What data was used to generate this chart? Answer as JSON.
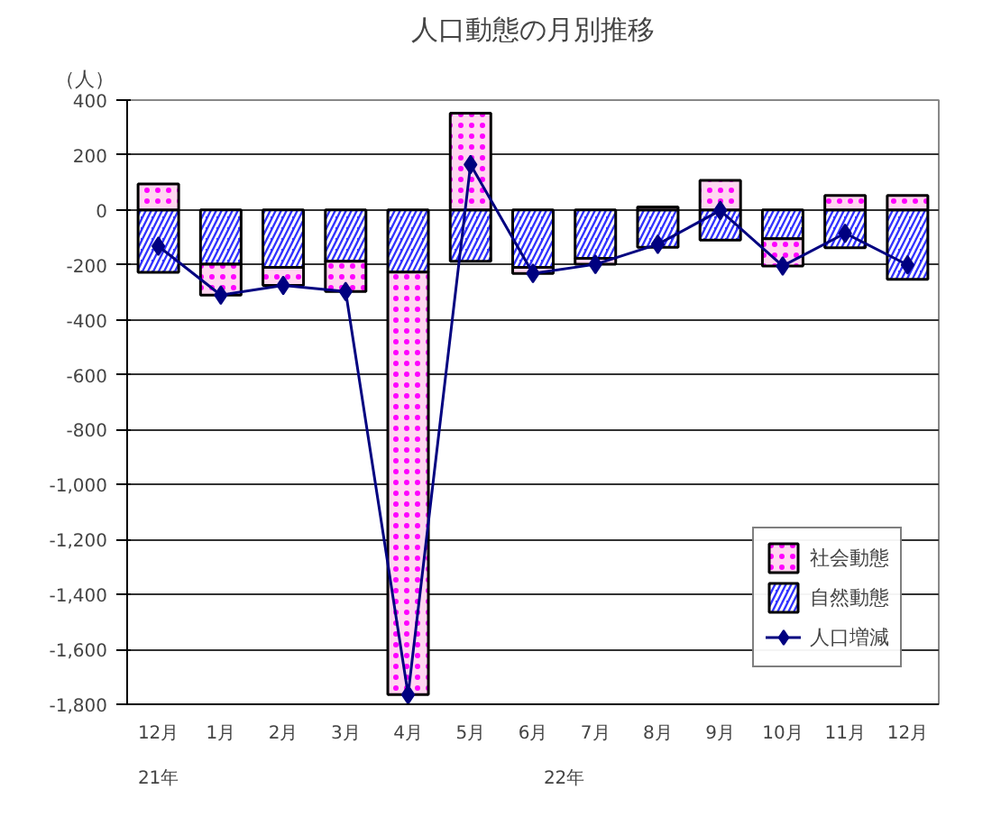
{
  "chart_data": {
    "type": "bar",
    "title": "人口動態の月別推移",
    "ylabel": "（人）",
    "categories": [
      "12月",
      "1月",
      "2月",
      "3月",
      "4月",
      "5月",
      "6月",
      "7月",
      "8月",
      "9月",
      "10月",
      "11月",
      "12月"
    ],
    "annotations": [
      "21年",
      "22年"
    ],
    "stacked": true,
    "series": [
      {
        "name": "自然動態",
        "color": "#3333ff",
        "values": [
          -227,
          -198,
          -209,
          -187,
          -226,
          -187,
          -209,
          -176,
          -136,
          -110,
          -105,
          -138,
          -253
        ]
      },
      {
        "name": "社会動態",
        "color": "#ffd6f0",
        "values": [
          95,
          -112,
          -66,
          -110,
          -1539,
          352,
          -22,
          -22,
          11,
          108,
          -99,
          53,
          53
        ]
      },
      {
        "name": "人口増減",
        "type": "line",
        "color": "#000080",
        "marker": "diamond",
        "values": [
          -132,
          -310,
          -275,
          -297,
          -1765,
          165,
          -231,
          -198,
          -125,
          -2,
          -204,
          -85,
          -200
        ]
      }
    ],
    "ylim": [
      -1800,
      400
    ],
    "yticks": [
      400,
      200,
      0,
      {
        "value": -200,
        "label": "-200"
      },
      {
        "value": -400,
        "label": "-400"
      },
      {
        "value": -600,
        "label": "-600"
      },
      {
        "value": -800,
        "label": "-800"
      },
      {
        "value": -1000,
        "label": "-1,000"
      },
      {
        "value": -1200,
        "label": "-1,200"
      },
      {
        "value": -1400,
        "label": "-1,400"
      },
      {
        "value": -1600,
        "label": "-1,600"
      },
      {
        "value": -1800,
        "label": "-1,800"
      }
    ],
    "grid": "y",
    "legend": "bottom right"
  }
}
